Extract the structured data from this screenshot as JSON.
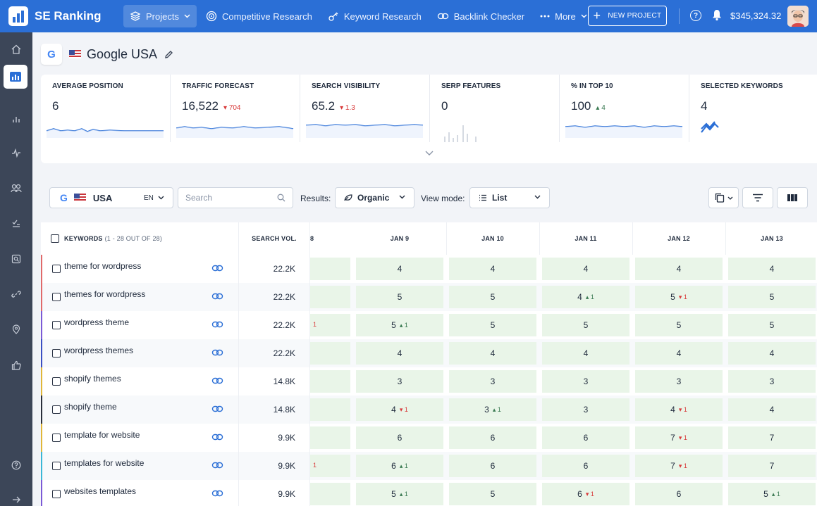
{
  "app": {
    "brand": "SE Ranking",
    "nav": [
      {
        "label": "Projects",
        "icon": "layers-icon",
        "active": true,
        "has_menu": true
      },
      {
        "label": "Competitive Research",
        "icon": "target-icon"
      },
      {
        "label": "Keyword Research",
        "icon": "key-icon"
      },
      {
        "label": "Backlink Checker",
        "icon": "link-icon"
      },
      {
        "label": "More",
        "icon": "dots-icon",
        "has_menu": true
      }
    ],
    "new_project": "NEW PROJECT",
    "balance": "$345,324.32"
  },
  "project": {
    "engine_icon": "G",
    "title": "Google USA"
  },
  "stats": [
    {
      "label": "AVERAGE POSITION",
      "value": "6",
      "delta": "",
      "delta_dir": ""
    },
    {
      "label": "TRAFFIC FORECAST",
      "value": "16,522",
      "delta": "704",
      "delta_dir": "down"
    },
    {
      "label": "SEARCH VISIBILITY",
      "value": "65.2",
      "delta": "1.3",
      "delta_dir": "down"
    },
    {
      "label": "SERP FEATURES",
      "value": "0",
      "delta": "",
      "delta_dir": ""
    },
    {
      "label": "% IN TOP 10",
      "value": "100",
      "delta": "4",
      "delta_dir": "up"
    },
    {
      "label": "SELECTED KEYWORDS",
      "value": "4",
      "delta": "",
      "delta_dir": ""
    }
  ],
  "toolbar": {
    "engine": "G",
    "country": "USA",
    "language": "EN",
    "search_placeholder": "Search",
    "results_label": "Results:",
    "results_value": "Organic",
    "view_label": "View mode:",
    "view_value": "List"
  },
  "table": {
    "kw_header": "KEYWORDS",
    "kw_count": "(1 - 28 OUT OF 28)",
    "vol_header": "SEARCH VOL.",
    "partial_header": "8",
    "dates": [
      "JAN 9",
      "JAN 10",
      "JAN 11",
      "JAN 12",
      "JAN 13"
    ],
    "rows": [
      {
        "keyword": "theme for wordpress",
        "volume": "22.2K",
        "color": "#e06a6a",
        "partial": "",
        "cells": [
          [
            "4",
            ""
          ],
          [
            "4",
            ""
          ],
          [
            "4",
            ""
          ],
          [
            "4",
            ""
          ],
          [
            "4",
            ""
          ]
        ]
      },
      {
        "keyword": "themes for wordpress",
        "volume": "22.2K",
        "color": "#e06a6a",
        "partial": "",
        "cells": [
          [
            "5",
            ""
          ],
          [
            "5",
            ""
          ],
          [
            "4",
            "up:1"
          ],
          [
            "5",
            "down:1"
          ],
          [
            "5",
            ""
          ]
        ]
      },
      {
        "keyword": "wordpress theme",
        "volume": "22.2K",
        "color": "#7b5ad6",
        "partial": "1",
        "cells": [
          [
            "5",
            "up:1"
          ],
          [
            "5",
            ""
          ],
          [
            "5",
            ""
          ],
          [
            "5",
            ""
          ],
          [
            "5",
            ""
          ]
        ]
      },
      {
        "keyword": "wordpress themes",
        "volume": "22.2K",
        "color": "#3b4fc2",
        "partial": "",
        "cells": [
          [
            "4",
            ""
          ],
          [
            "4",
            ""
          ],
          [
            "4",
            ""
          ],
          [
            "4",
            ""
          ],
          [
            "4",
            ""
          ]
        ]
      },
      {
        "keyword": "shopify themes",
        "volume": "14.8K",
        "color": "#e0b73a",
        "partial": "",
        "cells": [
          [
            "3",
            ""
          ],
          [
            "3",
            ""
          ],
          [
            "3",
            ""
          ],
          [
            "3",
            ""
          ],
          [
            "3",
            ""
          ]
        ]
      },
      {
        "keyword": "shopify theme",
        "volume": "14.8K",
        "color": "#2a2f3a",
        "partial": "",
        "cells": [
          [
            "4",
            "down:1"
          ],
          [
            "3",
            "up:1"
          ],
          [
            "3",
            ""
          ],
          [
            "4",
            "down:1"
          ],
          [
            "4",
            ""
          ]
        ]
      },
      {
        "keyword": "template for website",
        "volume": "9.9K",
        "color": "#e0b73a",
        "partial": "",
        "cells": [
          [
            "6",
            ""
          ],
          [
            "6",
            ""
          ],
          [
            "6",
            ""
          ],
          [
            "7",
            "down:1"
          ],
          [
            "7",
            ""
          ]
        ]
      },
      {
        "keyword": "templates for website",
        "volume": "9.9K",
        "color": "#3ab7d6",
        "partial": "1",
        "cells": [
          [
            "6",
            "up:1"
          ],
          [
            "6",
            ""
          ],
          [
            "6",
            ""
          ],
          [
            "7",
            "down:1"
          ],
          [
            "7",
            ""
          ]
        ]
      },
      {
        "keyword": "websites templates",
        "volume": "9.9K",
        "color": "#7b5ad6",
        "partial": "",
        "cells": [
          [
            "5",
            "up:1"
          ],
          [
            "5",
            ""
          ],
          [
            "6",
            "down:1"
          ],
          [
            "6",
            ""
          ],
          [
            "5",
            "up:1"
          ]
        ]
      }
    ]
  },
  "colors": {
    "topbar": "#2b6fd6",
    "sidebar": "#3c4658",
    "cell_green": "#e9f5e8",
    "delta_down": "#d83a3a",
    "delta_up": "#3a7a52"
  }
}
